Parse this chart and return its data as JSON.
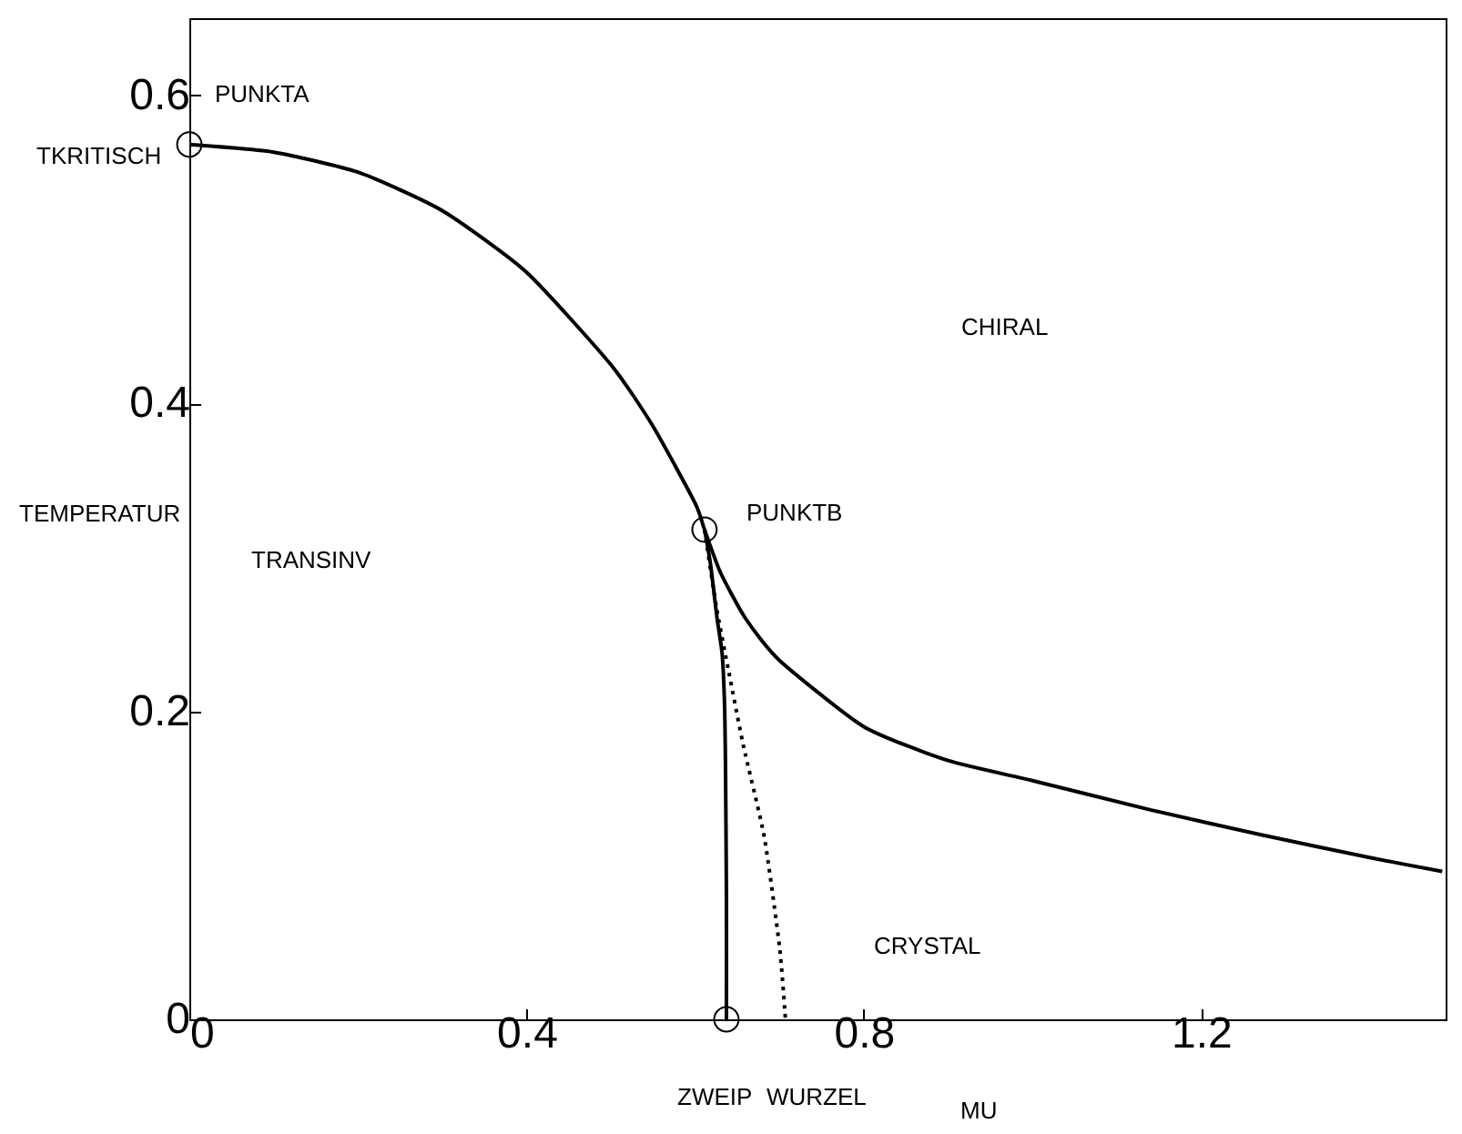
{
  "chart_data": {
    "type": "line",
    "xlabel": "MU",
    "ylabel": "TEMPERATUR",
    "xlim": [
      0,
      1.49
    ],
    "xticks": [
      0,
      0.4,
      0.8,
      1.2
    ],
    "ylim": [
      0,
      0.65
    ],
    "yticks": [
      0,
      0.2,
      0.4,
      0.6
    ],
    "grid": false,
    "series": [
      {
        "color": "#000000",
        "line_style": "solid",
        "x": [
          0,
          0.1,
          0.2,
          0.3,
          0.4,
          0.5,
          0.55,
          0.6,
          0.611,
          0.63,
          0.66,
          0.7,
          0.8,
          0.9,
          1.0,
          1.14,
          1.27,
          1.4,
          1.486
        ],
        "values": [
          0.568,
          0.563,
          0.55,
          0.525,
          0.485,
          0.425,
          0.385,
          0.335,
          0.318,
          0.29,
          0.26,
          0.233,
          0.19,
          0.168,
          0.155,
          0.136,
          0.12,
          0.105,
          0.096
        ]
      },
      {
        "color": "#000000",
        "line_style": "solid",
        "x": [
          0.611,
          0.618,
          0.626,
          0.632,
          0.635,
          0.636,
          0.637,
          0.637
        ],
        "values": [
          0.318,
          0.296,
          0.26,
          0.237,
          0.2,
          0.158,
          0.08,
          0
        ]
      },
      {
        "color": "#000000",
        "line_style": "dotted",
        "x": [
          0.611,
          0.625,
          0.64,
          0.657,
          0.682,
          0.7,
          0.707
        ],
        "values": [
          0.318,
          0.268,
          0.225,
          0.178,
          0.118,
          0.047,
          0
        ]
      },
      {
        "type": "scatter",
        "color": "#000000",
        "marker": "circle",
        "x": [
          0,
          0.611,
          0.637
        ],
        "values": [
          0.568,
          0.318,
          0
        ]
      }
    ],
    "annotations": [
      "PUNKTA",
      "PUNKTB",
      "TRANSINV",
      "CHIRAL",
      "CRYSTAL",
      "TKRITISCH",
      "ZWEIP",
      "WURZEL"
    ]
  }
}
